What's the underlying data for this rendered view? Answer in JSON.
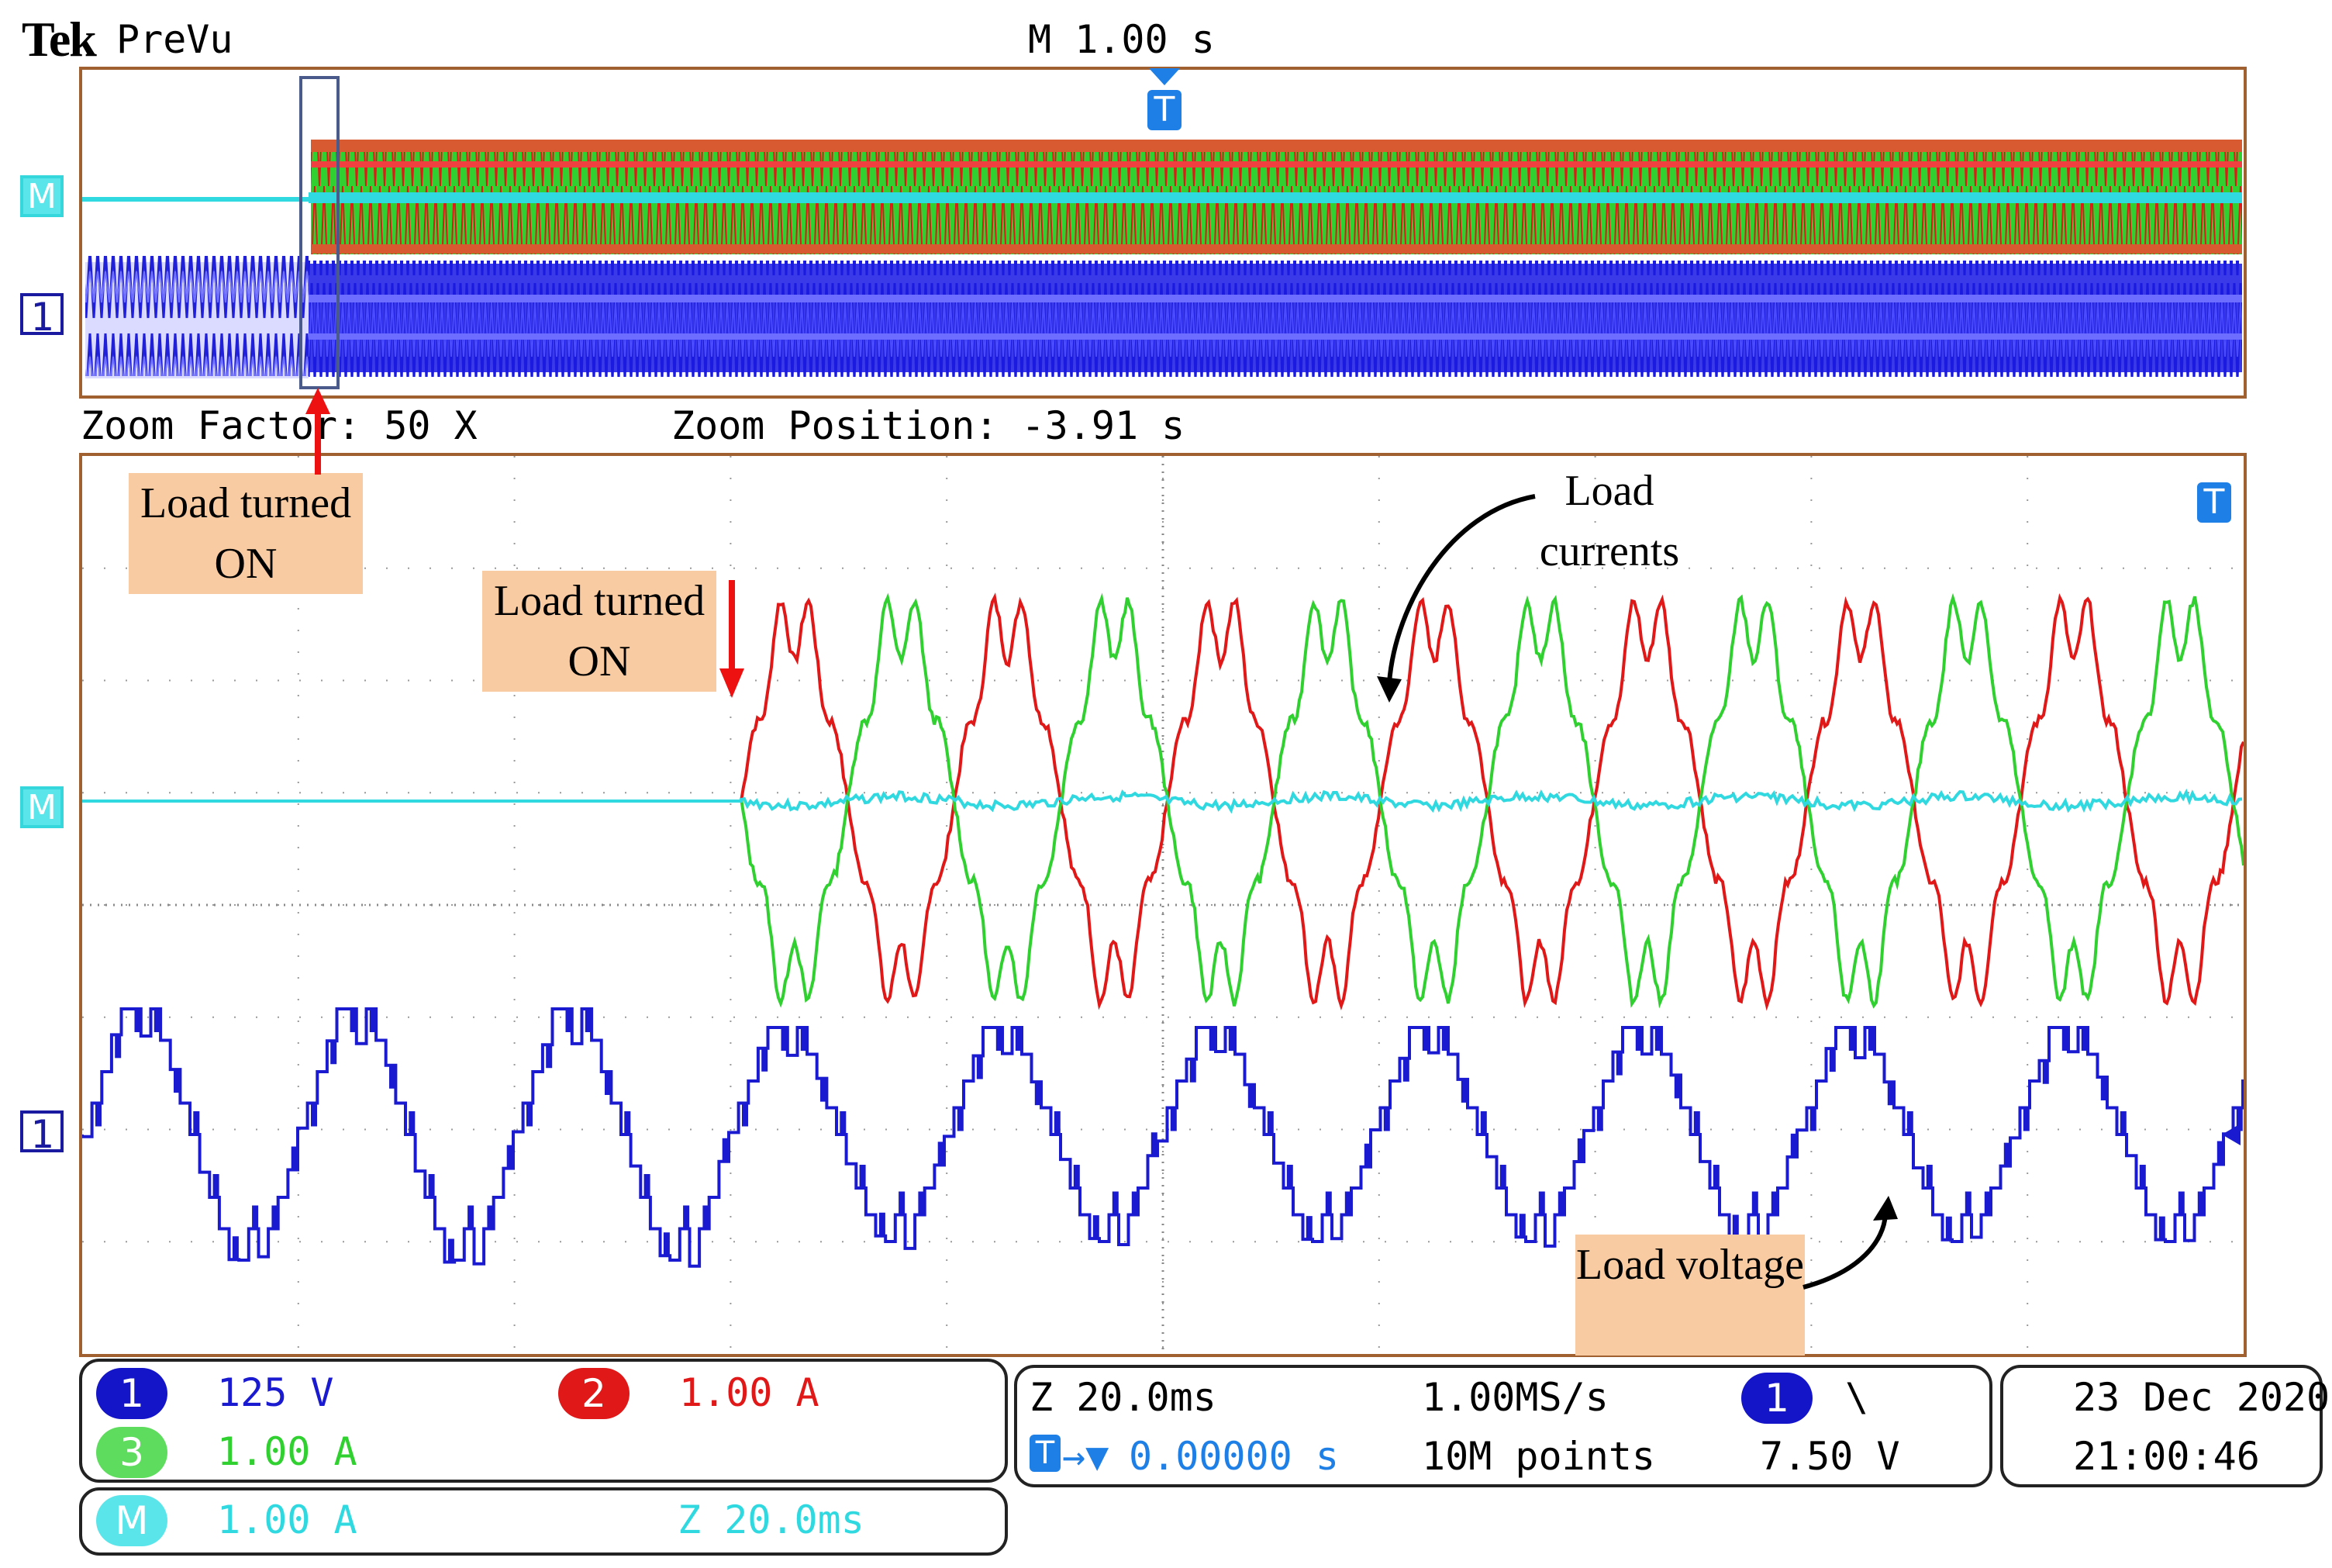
{
  "header": {
    "brand": "Tek",
    "mode": "PreVu",
    "timebase": "M 1.00 s"
  },
  "zoom": {
    "factor_label": "Zoom Factor: 50 X",
    "position_label": "Zoom Position: -3.91 s"
  },
  "markers": {
    "trigger": "T",
    "math": "M",
    "ch1": "1"
  },
  "annotations": {
    "load_on_upper": "Load turned ON",
    "load_on_lower": "Load turned ON",
    "load_currents": "Load currents",
    "load_voltage": "Load voltage"
  },
  "readout": {
    "ch1_num": "1",
    "ch1_scale": "125 V",
    "ch2_num": "2",
    "ch2_scale": "1.00 A",
    "ch3_num": "3",
    "ch3_scale": "1.00 A",
    "math_num": "M",
    "math_scale": "1.00 A",
    "math_zoom": "Z 20.0ms",
    "zoom_time": "Z 20.0ms",
    "trigger_pos": "0.00000 s",
    "sample_rate": "1.00MS/s",
    "record_length": "10M points",
    "trig_ch": "1",
    "trig_slope": "\\",
    "trig_level": "7.50 V",
    "date": "23 Dec  2020",
    "time": "21:00:46"
  },
  "colors": {
    "ch1": "#1a1ad0",
    "ch2": "#e01818",
    "ch3": "#30d030",
    "math": "#30d8e0",
    "screen_border": "#a06030",
    "note_bg": "#f9cba2"
  }
}
